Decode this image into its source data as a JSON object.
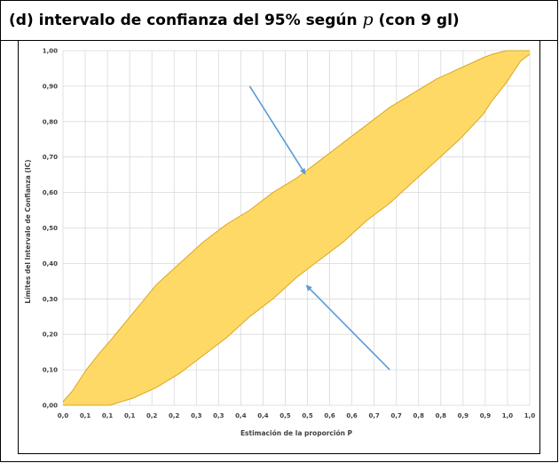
{
  "header": {
    "title_prefix": "(d) intervalo de confianza del 95% según ",
    "title_var": "p",
    "title_suffix": " (con 9 gl)"
  },
  "colors": {
    "band_fill": "#FFD966",
    "band_stroke": "#D8A820",
    "grid": "#D9D9D9",
    "arrow": "#5B9BD5"
  },
  "chart_data": {
    "type": "area",
    "xlabel": "Estimación de la proporción P",
    "ylabel": "Límites del Intervalo de Confianza (IC)",
    "xlim": [
      0,
      1
    ],
    "ylim": [
      0,
      1
    ],
    "grid": true,
    "x_tick_labels": [
      "0,0",
      "0,1",
      "0,1",
      "0,1",
      "0,2",
      "0,2",
      "0,3",
      "0,3",
      "0,4",
      "0,4",
      "0,5",
      "0,5",
      "0,6",
      "0,6",
      "0,7",
      "0,7",
      "0,8",
      "0,8",
      "0,9",
      "0,9",
      "1,0",
      "1,0"
    ],
    "y_tick_labels": [
      "0,00",
      "0,10",
      "0,20",
      "0,30",
      "0,40",
      "0,50",
      "0,60",
      "0,70",
      "0,80",
      "0,90",
      "1,00"
    ],
    "series": [
      {
        "x": [
          0.0,
          0.02,
          0.05,
          0.08,
          0.1,
          0.15,
          0.2,
          0.25,
          0.3,
          0.35,
          0.4,
          0.45,
          0.5,
          0.55,
          0.6,
          0.65,
          0.7,
          0.75,
          0.8,
          0.85,
          0.9,
          0.92,
          0.95,
          1.0
        ],
        "values": [
          0.01,
          0.04,
          0.1,
          0.15,
          0.18,
          0.26,
          0.34,
          0.4,
          0.46,
          0.51,
          0.55,
          0.6,
          0.64,
          0.69,
          0.74,
          0.79,
          0.84,
          0.88,
          0.92,
          0.95,
          0.98,
          0.99,
          1.0,
          1.0
        ]
      },
      {
        "x": [
          0.0,
          0.05,
          0.08,
          0.1,
          0.15,
          0.2,
          0.25,
          0.3,
          0.35,
          0.4,
          0.45,
          0.5,
          0.55,
          0.6,
          0.65,
          0.7,
          0.75,
          0.8,
          0.85,
          0.9,
          0.92,
          0.95,
          0.98,
          1.0
        ],
        "values": [
          0.0,
          0.0,
          0.0,
          0.0,
          0.02,
          0.05,
          0.09,
          0.14,
          0.19,
          0.25,
          0.3,
          0.36,
          0.41,
          0.46,
          0.52,
          0.57,
          0.63,
          0.69,
          0.75,
          0.82,
          0.86,
          0.91,
          0.97,
          0.99
        ]
      }
    ],
    "annotations": [
      {
        "type": "arrow",
        "from": [
          0.4,
          0.9
        ],
        "to": [
          0.52,
          0.65
        ]
      },
      {
        "type": "arrow",
        "from": [
          0.7,
          0.1
        ],
        "to": [
          0.52,
          0.34
        ]
      }
    ]
  }
}
